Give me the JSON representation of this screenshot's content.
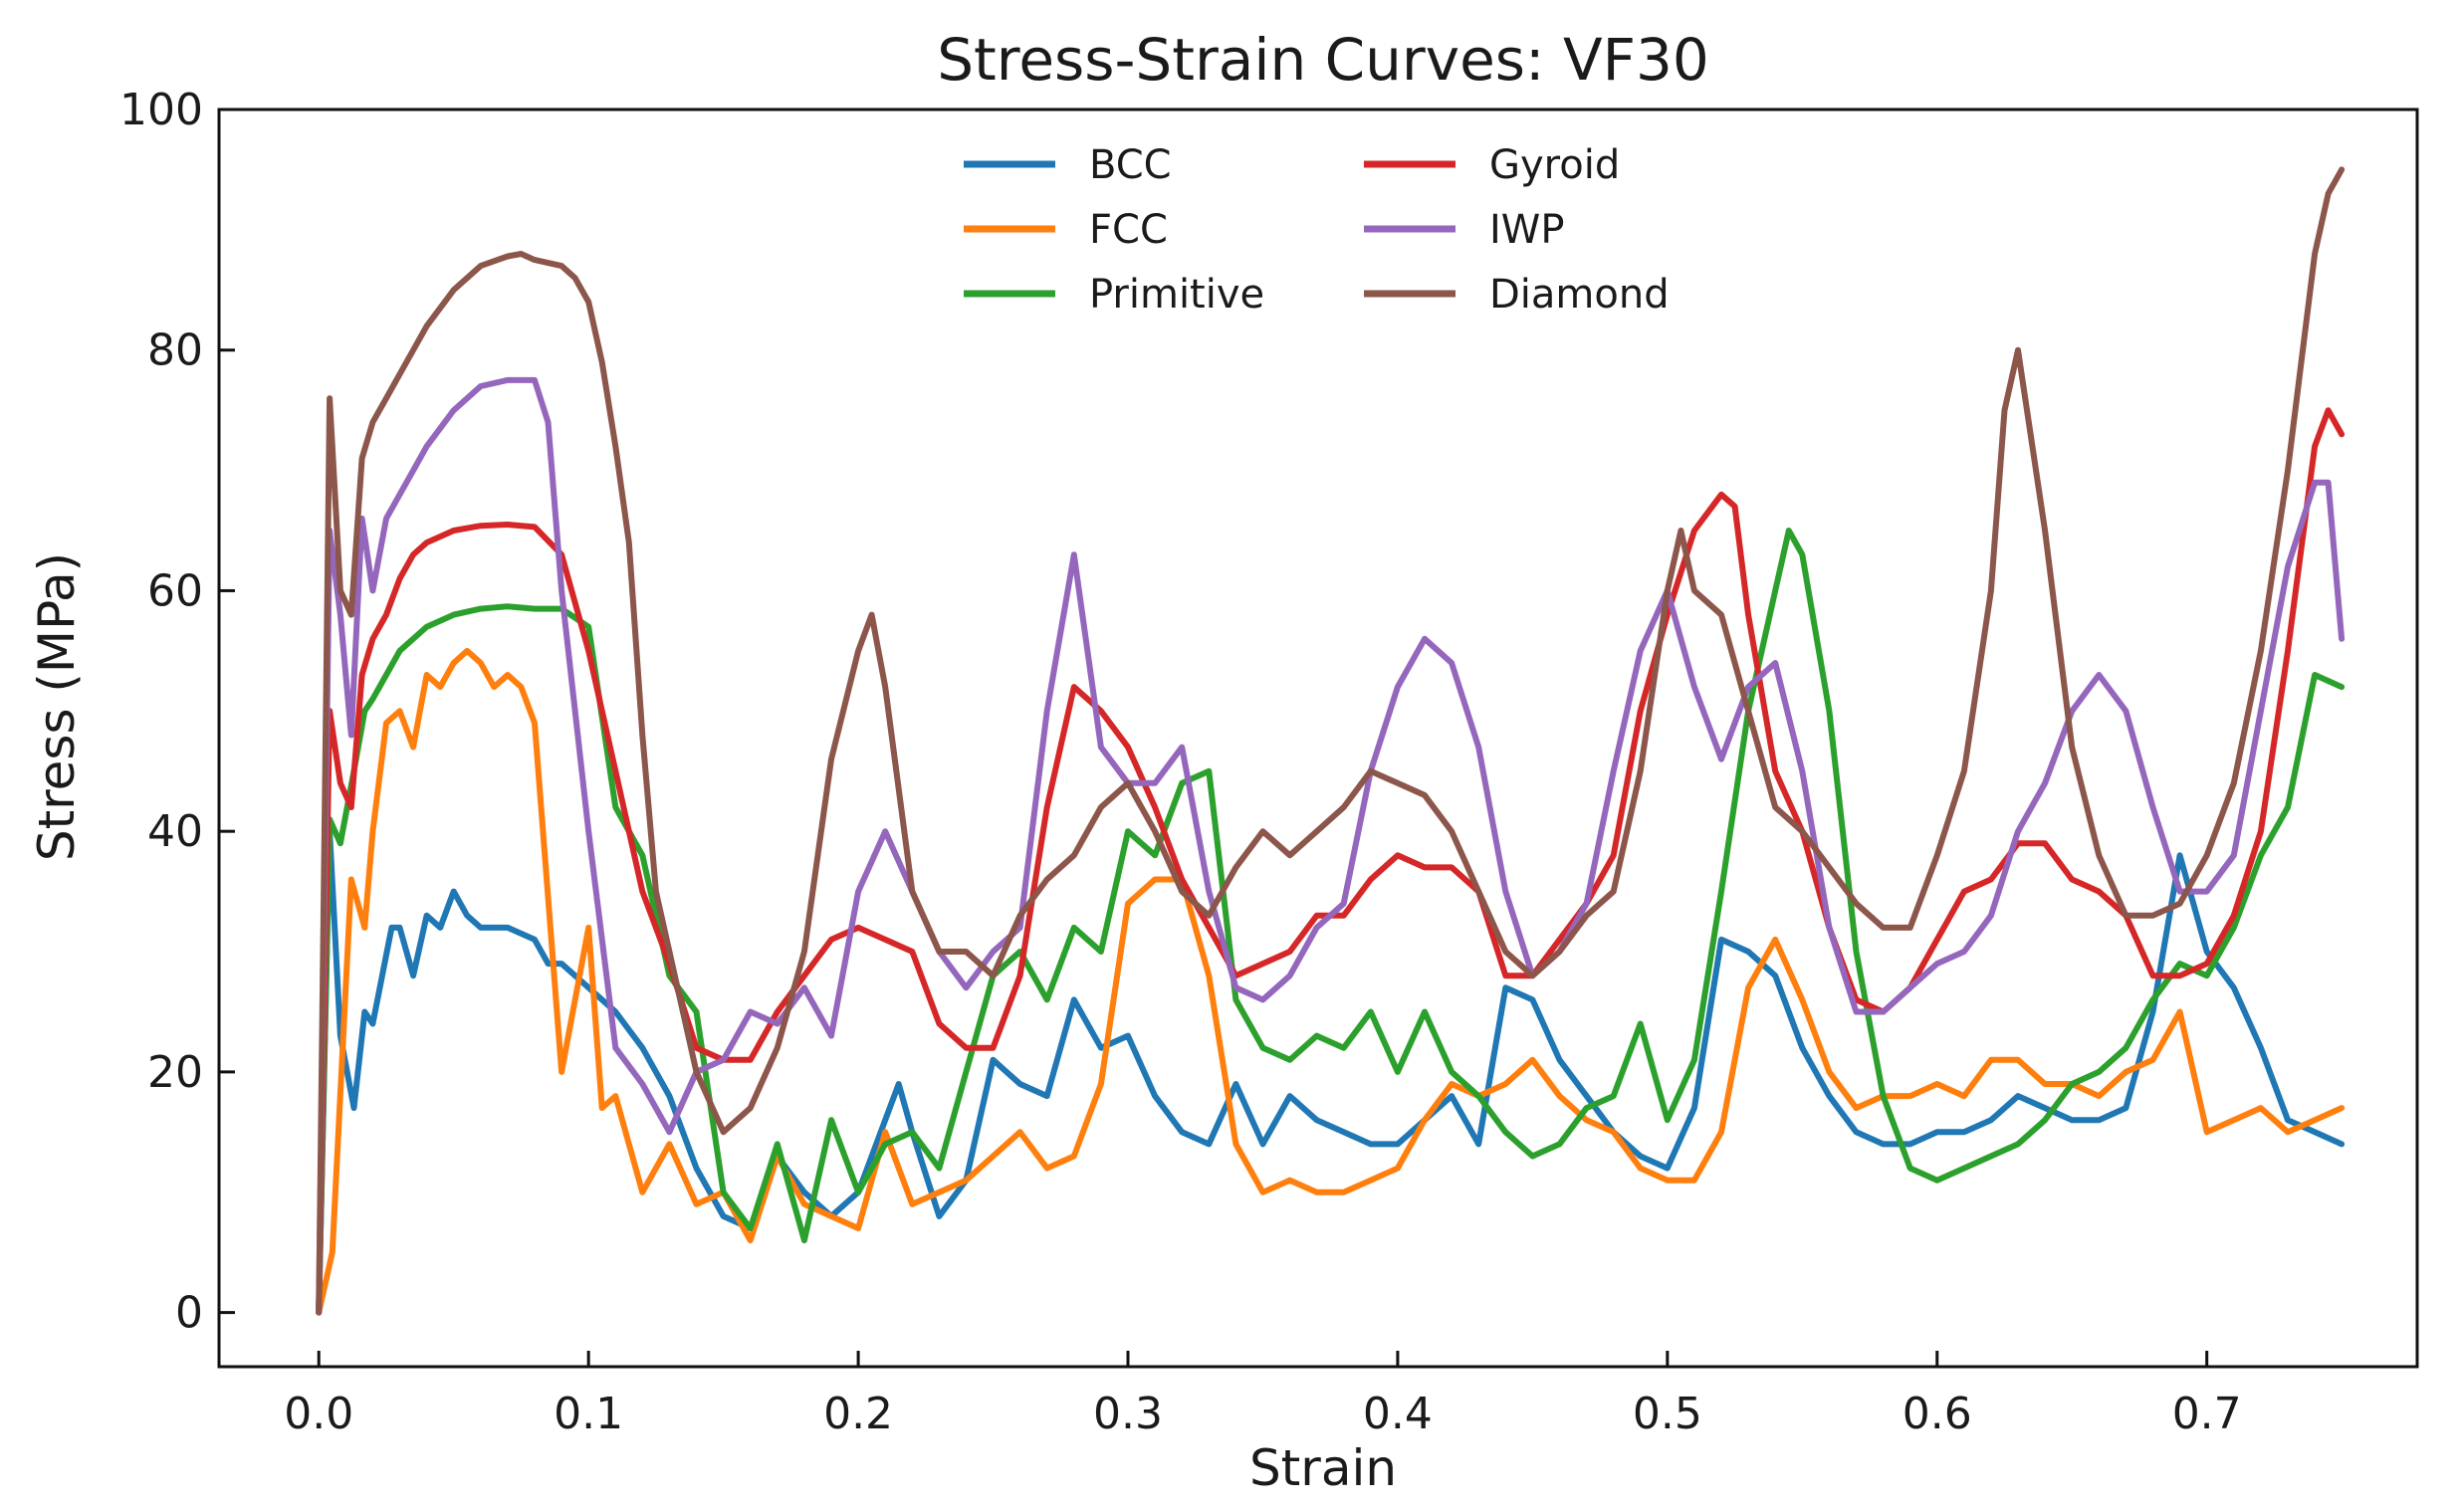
{
  "chart_data": {
    "type": "line",
    "title": "Stress-Strain Curves: VF30",
    "xlabel": "Strain",
    "ylabel": "Stress (MPa)",
    "xlim": [
      -0.037,
      0.778
    ],
    "ylim": [
      -4.5,
      100
    ],
    "xticks": [
      0.0,
      0.1,
      0.2,
      0.3,
      0.4,
      0.5,
      0.6,
      0.7
    ],
    "xtick_labels": [
      "0.0",
      "0.1",
      "0.2",
      "0.3",
      "0.4",
      "0.5",
      "0.6",
      "0.7"
    ],
    "yticks": [
      0,
      20,
      40,
      60,
      80,
      100
    ],
    "ytick_labels": [
      "0",
      "20",
      "40",
      "60",
      "80",
      "100"
    ],
    "grid": false,
    "legend": {
      "placement": "top-center",
      "columns": 2
    },
    "series": [
      {
        "name": "BCC",
        "color": "#1f77b4",
        "x": [
          0.0,
          0.004,
          0.008,
          0.013,
          0.017,
          0.02,
          0.027,
          0.03,
          0.035,
          0.04,
          0.045,
          0.05,
          0.055,
          0.06,
          0.065,
          0.07,
          0.08,
          0.085,
          0.09,
          0.1,
          0.11,
          0.12,
          0.13,
          0.14,
          0.15,
          0.16,
          0.17,
          0.18,
          0.19,
          0.2,
          0.21,
          0.215,
          0.22,
          0.23,
          0.24,
          0.25,
          0.26,
          0.27,
          0.28,
          0.29,
          0.3,
          0.31,
          0.32,
          0.33,
          0.34,
          0.35,
          0.36,
          0.37,
          0.38,
          0.39,
          0.4,
          0.41,
          0.42,
          0.43,
          0.44,
          0.45,
          0.46,
          0.47,
          0.48,
          0.49,
          0.5,
          0.51,
          0.52,
          0.53,
          0.54,
          0.55,
          0.56,
          0.57,
          0.58,
          0.59,
          0.6,
          0.61,
          0.62,
          0.63,
          0.64,
          0.65,
          0.66,
          0.67,
          0.68,
          0.69,
          0.7,
          0.71,
          0.72,
          0.73,
          0.74,
          0.75
        ],
        "y": [
          0,
          40,
          23,
          17,
          25,
          24,
          32,
          32,
          28,
          33,
          32,
          35,
          33,
          32,
          32,
          32,
          31,
          29,
          29,
          27,
          25,
          22,
          18,
          12,
          8,
          7,
          13,
          10,
          8,
          10,
          16,
          19,
          15,
          8,
          11,
          21,
          19,
          18,
          26,
          22,
          23,
          18,
          15,
          14,
          19,
          14,
          18,
          16,
          15,
          14,
          14,
          16,
          18,
          14,
          27,
          26,
          21,
          18,
          15,
          13,
          12,
          17,
          31,
          30,
          28,
          22,
          18,
          15,
          14,
          14,
          15,
          15,
          16,
          18,
          17,
          16,
          16,
          17,
          25,
          38,
          30,
          27,
          22,
          16,
          15,
          14
        ]
      },
      {
        "name": "FCC",
        "color": "#ff7f0e",
        "x": [
          0.0,
          0.005,
          0.012,
          0.017,
          0.02,
          0.025,
          0.03,
          0.035,
          0.04,
          0.045,
          0.05,
          0.055,
          0.06,
          0.065,
          0.07,
          0.075,
          0.08,
          0.09,
          0.1,
          0.105,
          0.11,
          0.12,
          0.13,
          0.14,
          0.15,
          0.16,
          0.17,
          0.18,
          0.19,
          0.2,
          0.21,
          0.22,
          0.23,
          0.24,
          0.25,
          0.26,
          0.27,
          0.28,
          0.29,
          0.3,
          0.31,
          0.32,
          0.33,
          0.34,
          0.35,
          0.36,
          0.37,
          0.38,
          0.39,
          0.4,
          0.41,
          0.42,
          0.43,
          0.44,
          0.45,
          0.46,
          0.47,
          0.48,
          0.49,
          0.5,
          0.51,
          0.52,
          0.53,
          0.54,
          0.55,
          0.56,
          0.57,
          0.58,
          0.59,
          0.6,
          0.61,
          0.62,
          0.63,
          0.64,
          0.65,
          0.66,
          0.67,
          0.68,
          0.69,
          0.7,
          0.71,
          0.72,
          0.73,
          0.74,
          0.75
        ],
        "y": [
          0,
          5,
          36,
          32,
          40,
          49,
          50,
          47,
          53,
          52,
          54,
          55,
          54,
          52,
          53,
          52,
          49,
          20,
          32,
          17,
          18,
          10,
          14,
          9,
          10,
          6,
          13,
          9,
          8,
          7,
          15,
          9,
          10,
          11,
          13,
          15,
          12,
          13,
          19,
          34,
          36,
          36,
          28,
          14,
          10,
          11,
          10,
          10,
          11,
          12,
          16,
          19,
          18,
          19,
          21,
          18,
          16,
          15,
          12,
          11,
          11,
          15,
          27,
          31,
          26,
          20,
          17,
          18,
          18,
          19,
          18,
          21,
          21,
          19,
          19,
          18,
          20,
          21,
          25,
          15,
          16,
          17,
          15,
          16,
          17
        ]
      },
      {
        "name": "Primitive",
        "color": "#2ca02c",
        "x": [
          0.0,
          0.004,
          0.008,
          0.013,
          0.017,
          0.02,
          0.025,
          0.03,
          0.035,
          0.04,
          0.05,
          0.06,
          0.07,
          0.08,
          0.09,
          0.1,
          0.11,
          0.12,
          0.13,
          0.14,
          0.15,
          0.16,
          0.17,
          0.18,
          0.19,
          0.2,
          0.21,
          0.22,
          0.23,
          0.24,
          0.25,
          0.26,
          0.27,
          0.28,
          0.29,
          0.3,
          0.31,
          0.32,
          0.33,
          0.34,
          0.35,
          0.36,
          0.37,
          0.38,
          0.39,
          0.4,
          0.41,
          0.42,
          0.43,
          0.44,
          0.45,
          0.46,
          0.47,
          0.48,
          0.49,
          0.5,
          0.51,
          0.52,
          0.53,
          0.54,
          0.545,
          0.55,
          0.56,
          0.57,
          0.58,
          0.59,
          0.6,
          0.61,
          0.62,
          0.63,
          0.64,
          0.65,
          0.66,
          0.67,
          0.68,
          0.69,
          0.7,
          0.71,
          0.72,
          0.73,
          0.74,
          0.75
        ],
        "y": [
          0,
          41,
          39,
          45,
          50,
          51,
          53,
          55,
          56,
          57,
          58,
          58.5,
          58.7,
          58.5,
          58.5,
          57,
          42,
          38,
          28,
          25,
          10,
          7,
          14,
          6,
          16,
          10,
          14,
          15,
          12,
          20,
          28,
          30,
          26,
          32,
          30,
          40,
          38,
          44,
          45,
          26,
          22,
          21,
          23,
          22,
          25,
          20,
          25,
          20,
          18,
          15,
          13,
          14,
          17,
          18,
          24,
          16,
          21,
          35,
          50,
          60,
          65,
          63,
          50,
          30,
          18,
          12,
          11,
          12,
          13,
          14,
          16,
          19,
          20,
          22,
          26,
          29,
          28,
          32,
          38,
          42,
          53,
          52
        ]
      },
      {
        "name": "Gyroid",
        "color": "#d62728",
        "x": [
          0.0,
          0.004,
          0.008,
          0.012,
          0.016,
          0.02,
          0.025,
          0.03,
          0.035,
          0.04,
          0.05,
          0.06,
          0.07,
          0.08,
          0.09,
          0.1,
          0.11,
          0.12,
          0.13,
          0.14,
          0.15,
          0.16,
          0.17,
          0.18,
          0.19,
          0.2,
          0.21,
          0.22,
          0.23,
          0.24,
          0.25,
          0.26,
          0.27,
          0.28,
          0.29,
          0.3,
          0.31,
          0.32,
          0.33,
          0.34,
          0.35,
          0.36,
          0.37,
          0.38,
          0.39,
          0.4,
          0.41,
          0.42,
          0.43,
          0.44,
          0.45,
          0.46,
          0.47,
          0.48,
          0.49,
          0.5,
          0.51,
          0.52,
          0.525,
          0.53,
          0.54,
          0.55,
          0.56,
          0.57,
          0.58,
          0.59,
          0.6,
          0.61,
          0.62,
          0.63,
          0.64,
          0.65,
          0.66,
          0.67,
          0.68,
          0.69,
          0.7,
          0.71,
          0.72,
          0.73,
          0.74,
          0.745,
          0.75
        ],
        "y": [
          0,
          50,
          44,
          42,
          53,
          56,
          58,
          61,
          63,
          64,
          65,
          65.4,
          65.5,
          65.3,
          63,
          55,
          45,
          35,
          29,
          22,
          21,
          21,
          25,
          28,
          31,
          32,
          31,
          30,
          24,
          22,
          22,
          28,
          42,
          52,
          50,
          47,
          42,
          36,
          32,
          28,
          29,
          30,
          33,
          33,
          36,
          38,
          37,
          37,
          35,
          28,
          28,
          31,
          34,
          38,
          50,
          58,
          65,
          68,
          67,
          58,
          45,
          40,
          32,
          26,
          25,
          27,
          31,
          35,
          36,
          39,
          39,
          36,
          35,
          33,
          28,
          28,
          29,
          33,
          40,
          55,
          72,
          75,
          73
        ]
      },
      {
        "name": "IWP",
        "color": "#9467bd",
        "x": [
          0.0,
          0.004,
          0.008,
          0.012,
          0.016,
          0.02,
          0.025,
          0.03,
          0.035,
          0.04,
          0.05,
          0.06,
          0.07,
          0.08,
          0.085,
          0.09,
          0.1,
          0.11,
          0.12,
          0.13,
          0.14,
          0.15,
          0.16,
          0.17,
          0.18,
          0.19,
          0.2,
          0.21,
          0.22,
          0.23,
          0.24,
          0.25,
          0.26,
          0.27,
          0.28,
          0.29,
          0.3,
          0.31,
          0.32,
          0.33,
          0.34,
          0.35,
          0.36,
          0.37,
          0.38,
          0.39,
          0.4,
          0.41,
          0.42,
          0.43,
          0.44,
          0.45,
          0.46,
          0.47,
          0.48,
          0.49,
          0.5,
          0.51,
          0.52,
          0.53,
          0.54,
          0.55,
          0.56,
          0.57,
          0.58,
          0.59,
          0.6,
          0.61,
          0.62,
          0.63,
          0.64,
          0.65,
          0.66,
          0.67,
          0.68,
          0.69,
          0.7,
          0.71,
          0.72,
          0.73,
          0.74,
          0.745,
          0.75
        ],
        "y": [
          0,
          65,
          58,
          48,
          66,
          60,
          66,
          68,
          70,
          72,
          75,
          77,
          77.5,
          77.5,
          74,
          60,
          40,
          22,
          19,
          15,
          20,
          21,
          25,
          24,
          27,
          23,
          35,
          40,
          35,
          30,
          27,
          30,
          32,
          50,
          63,
          47,
          44,
          44,
          47,
          35,
          27,
          26,
          28,
          32,
          34,
          45,
          52,
          56,
          54,
          47,
          35,
          28,
          30,
          34,
          45,
          55,
          60,
          52,
          46,
          52,
          54,
          45,
          32,
          25,
          25,
          27,
          29,
          30,
          33,
          40,
          44,
          50,
          53,
          50,
          42,
          35,
          35,
          38,
          50,
          62,
          69,
          69,
          56
        ]
      },
      {
        "name": "Diamond",
        "color": "#8c564b",
        "x": [
          0.0,
          0.004,
          0.008,
          0.012,
          0.016,
          0.02,
          0.025,
          0.03,
          0.035,
          0.04,
          0.05,
          0.06,
          0.07,
          0.075,
          0.08,
          0.09,
          0.095,
          0.1,
          0.105,
          0.11,
          0.115,
          0.12,
          0.125,
          0.13,
          0.14,
          0.15,
          0.16,
          0.17,
          0.18,
          0.19,
          0.2,
          0.205,
          0.21,
          0.22,
          0.23,
          0.24,
          0.25,
          0.26,
          0.27,
          0.28,
          0.29,
          0.3,
          0.31,
          0.32,
          0.33,
          0.34,
          0.35,
          0.36,
          0.37,
          0.38,
          0.39,
          0.4,
          0.41,
          0.42,
          0.43,
          0.44,
          0.45,
          0.46,
          0.47,
          0.48,
          0.49,
          0.5,
          0.505,
          0.51,
          0.52,
          0.53,
          0.54,
          0.55,
          0.56,
          0.57,
          0.58,
          0.59,
          0.6,
          0.61,
          0.62,
          0.625,
          0.63,
          0.64,
          0.65,
          0.66,
          0.67,
          0.68,
          0.69,
          0.7,
          0.71,
          0.72,
          0.73,
          0.74,
          0.745,
          0.75
        ],
        "y": [
          0,
          76,
          60,
          58,
          71,
          74,
          76,
          78,
          80,
          82,
          85,
          87,
          87.8,
          88,
          87.5,
          87,
          86,
          84,
          79,
          72,
          64,
          48,
          35,
          30,
          20,
          15,
          17,
          22,
          30,
          46,
          55,
          58,
          52,
          35,
          30,
          30,
          28,
          33,
          36,
          38,
          42,
          44,
          40,
          35,
          33,
          37,
          40,
          38,
          40,
          42,
          45,
          44,
          43,
          40,
          35,
          30,
          28,
          30,
          33,
          35,
          45,
          60,
          65,
          60,
          58,
          50,
          42,
          40,
          37,
          34,
          32,
          32,
          38,
          45,
          60,
          75,
          80,
          65,
          47,
          38,
          33,
          33,
          34,
          38,
          44,
          55,
          70,
          88,
          93,
          95
        ]
      }
    ]
  }
}
